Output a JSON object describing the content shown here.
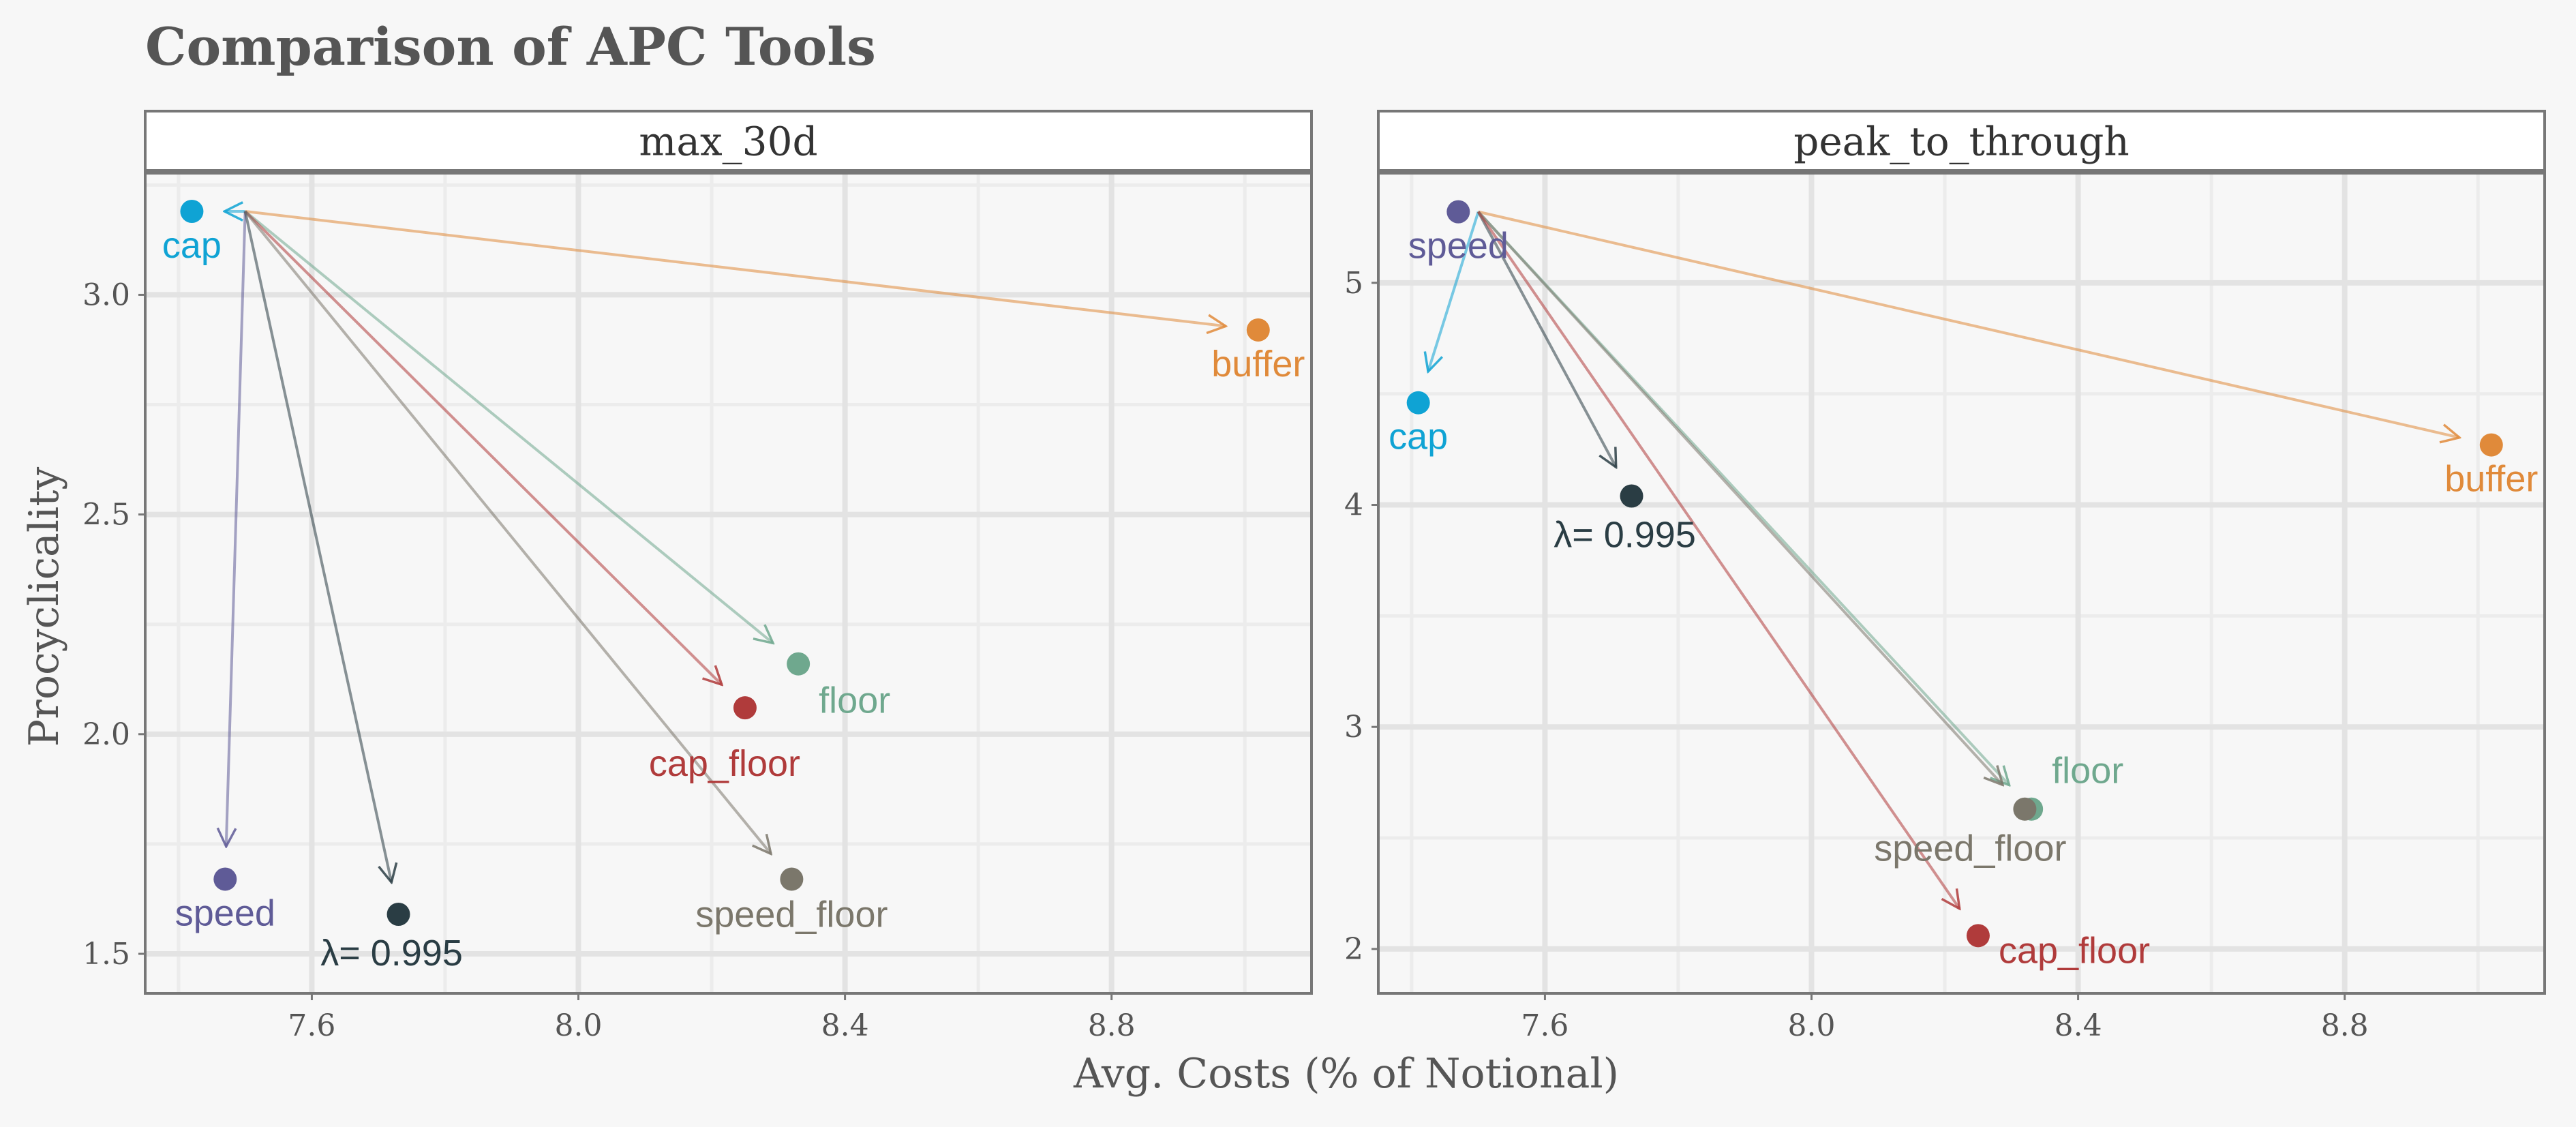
{
  "title": "Comparison of APC Tools",
  "colors": {
    "cap": "#0fa3d4",
    "buffer": "#e08a3a",
    "floor": "#6fa88e",
    "cap_floor": "#b03b3b",
    "speed": "#5f5b97",
    "speed_floor": "#7b776b",
    "lambda": "#2a3d44"
  },
  "chart_data": [
    {
      "type": "scatter",
      "panel": "max_30d",
      "xlabel": "Avg. Costs (% of Notional)",
      "ylabel": "Procyclicality",
      "xlim": [
        7.35,
        9.1
      ],
      "ylim": [
        1.41,
        3.28
      ],
      "xticks": [
        7.6,
        8.0,
        8.4,
        8.8
      ],
      "yticks": [
        1.5,
        2.0,
        2.5,
        3.0
      ],
      "origin": {
        "x": 7.5,
        "y": 3.19
      },
      "points": [
        {
          "label": "cap",
          "x": 7.42,
          "y": 3.19,
          "color_key": "cap",
          "arrow": true,
          "label_pos": "below"
        },
        {
          "label": "buffer",
          "x": 9.02,
          "y": 2.92,
          "color_key": "buffer",
          "arrow": true,
          "label_pos": "below"
        },
        {
          "label": "floor",
          "x": 8.33,
          "y": 2.16,
          "color_key": "floor",
          "arrow": true,
          "label_pos": "below-right"
        },
        {
          "label": "cap_floor",
          "x": 8.25,
          "y": 2.06,
          "color_key": "cap_floor",
          "arrow": true,
          "label_pos": "below-left"
        },
        {
          "label": "speed",
          "x": 7.47,
          "y": 1.67,
          "color_key": "speed",
          "arrow": true,
          "label_pos": "below"
        },
        {
          "label": "λ= 0.995",
          "x": 7.73,
          "y": 1.59,
          "color_key": "lambda",
          "arrow": true,
          "label_pos": "below"
        },
        {
          "label": "speed_floor",
          "x": 8.32,
          "y": 1.67,
          "color_key": "speed_floor",
          "arrow": true,
          "label_pos": "below"
        }
      ]
    },
    {
      "type": "scatter",
      "panel": "peak_to_through",
      "xlabel": "Avg. Costs (% of Notional)",
      "ylabel": "Procyclicality",
      "xlim": [
        7.35,
        9.1
      ],
      "ylim": [
        1.8,
        5.5
      ],
      "xticks": [
        7.6,
        8.0,
        8.4,
        8.8
      ],
      "yticks": [
        2,
        3,
        4,
        5
      ],
      "origin": {
        "x": 7.5,
        "y": 5.32
      },
      "points": [
        {
          "label": "speed",
          "x": 7.47,
          "y": 5.32,
          "color_key": "speed",
          "arrow": false,
          "label_pos": "below"
        },
        {
          "label": "cap",
          "x": 7.41,
          "y": 4.46,
          "color_key": "cap",
          "arrow": true,
          "label_pos": "below"
        },
        {
          "label": "buffer",
          "x": 9.02,
          "y": 4.27,
          "color_key": "buffer",
          "arrow": true,
          "label_pos": "below"
        },
        {
          "label": "λ= 0.995",
          "x": 7.73,
          "y": 4.04,
          "color_key": "lambda",
          "arrow": true,
          "label_pos": "below"
        },
        {
          "label": "floor",
          "x": 8.33,
          "y": 2.63,
          "color_key": "floor",
          "arrow": true,
          "label_pos": "above-right"
        },
        {
          "label": "speed_floor",
          "x": 8.32,
          "y": 2.63,
          "color_key": "speed_floor",
          "arrow": true,
          "label_pos": "below-left"
        },
        {
          "label": "cap_floor",
          "x": 8.25,
          "y": 2.06,
          "color_key": "cap_floor",
          "arrow": true,
          "label_pos": "right"
        }
      ]
    }
  ]
}
